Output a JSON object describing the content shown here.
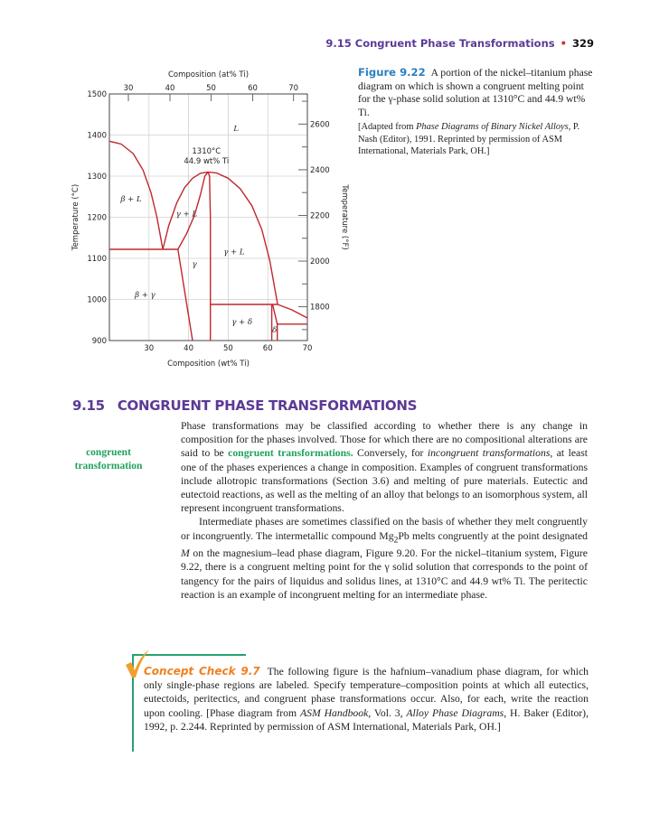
{
  "running_head": {
    "section": "9.15 Congruent Phase Transformations",
    "bullet": "•",
    "page": "329"
  },
  "chart_data": {
    "type": "line",
    "title": "",
    "xlabel_bottom": "Composition (wt% Ti)",
    "xlabel_top": "Composition (at% Ti)",
    "ylabel_left": "Temperature (°C)",
    "ylabel_right": "Temperature (°F)",
    "xlim": [
      20,
      70
    ],
    "ylim": [
      900,
      1500
    ],
    "x_ticks": [
      "30",
      "40",
      "50",
      "60",
      "70"
    ],
    "x_tick_values": [
      30,
      40,
      50,
      60,
      70
    ],
    "top_ticks": [
      "30",
      "40",
      "50",
      "60",
      "70"
    ],
    "top_tick_values_wt": [
      24.8,
      35.3,
      45.7,
      56.2,
      66.5
    ],
    "y_ticks": [
      "900",
      "1000",
      "1100",
      "1200",
      "1300",
      "1400",
      "1500"
    ],
    "y_tick_values": [
      900,
      1000,
      1100,
      1200,
      1300,
      1400,
      1500
    ],
    "right_ticks": [
      "1800",
      "2000",
      "2200",
      "2400",
      "2600"
    ],
    "right_tick_values_F": [
      1800,
      2000,
      2200,
      2400,
      2600
    ],
    "grid": true,
    "line_color": "#c0282d",
    "lines": [
      {
        "points": [
          [
            20,
            1385
          ],
          [
            23,
            1378
          ],
          [
            26,
            1355
          ],
          [
            28.5,
            1315
          ],
          [
            30.5,
            1260
          ],
          [
            32,
            1200
          ],
          [
            33.5,
            1122
          ]
        ]
      },
      {
        "points": [
          [
            33.5,
            1122
          ],
          [
            35,
            1180
          ],
          [
            37,
            1235
          ],
          [
            39,
            1272
          ],
          [
            41,
            1295
          ],
          [
            43,
            1307
          ],
          [
            44.9,
            1310
          ]
        ]
      },
      {
        "points": [
          [
            37.3,
            1122
          ],
          [
            39.5,
            1160
          ],
          [
            41.5,
            1205
          ],
          [
            43,
            1255
          ],
          [
            44.1,
            1300
          ],
          [
            44.9,
            1310
          ]
        ]
      },
      {
        "points": [
          [
            44.9,
            1310
          ],
          [
            47,
            1308
          ],
          [
            50,
            1295
          ],
          [
            53,
            1270
          ],
          [
            56,
            1228
          ],
          [
            58.5,
            1170
          ],
          [
            60.5,
            1095
          ],
          [
            62.5,
            988
          ]
        ]
      },
      {
        "points": [
          [
            44.9,
            1310
          ],
          [
            45.3,
            1300
          ],
          [
            45.5,
            1200
          ],
          [
            45.5,
            900
          ]
        ]
      },
      {
        "points": [
          [
            20,
            1122
          ],
          [
            37.3,
            1122
          ]
        ]
      },
      {
        "points": [
          [
            37.3,
            1122
          ],
          [
            41,
            900
          ]
        ]
      },
      {
        "points": [
          [
            45.5,
            988
          ],
          [
            62.5,
            988
          ]
        ]
      },
      {
        "points": [
          [
            61,
            988
          ],
          [
            61,
            900
          ]
        ]
      },
      {
        "points": [
          [
            61.2,
            988
          ],
          [
            62.4,
            940
          ],
          [
            62.4,
            900
          ]
        ]
      },
      {
        "points": [
          [
            62.4,
            940
          ],
          [
            70,
            940
          ]
        ]
      },
      {
        "points": [
          [
            62.5,
            988
          ],
          [
            66,
            975
          ],
          [
            70,
            955
          ]
        ]
      }
    ],
    "annotations": [
      {
        "text": "L",
        "x": 52,
        "y": 1410,
        "italic": true
      },
      {
        "text": "1310°C",
        "x": 44.5,
        "y": 1355
      },
      {
        "text": "44.9 wt% Ti",
        "x": 44.5,
        "y": 1331
      },
      {
        "text": "β + L",
        "x": 25.5,
        "y": 1238
      },
      {
        "text": "γ + L",
        "x": 39.5,
        "y": 1202
      },
      {
        "text": "γ + L",
        "x": 51.5,
        "y": 1110
      },
      {
        "text": "γ",
        "x": 41.5,
        "y": 1080
      },
      {
        "text": "β + γ",
        "x": 29,
        "y": 1005
      },
      {
        "text": "γ + δ",
        "x": 53.5,
        "y": 940
      },
      {
        "text": "δ",
        "x": 61.7,
        "y": 920
      }
    ]
  },
  "caption": {
    "label": "Figure 9.22",
    "text": "A portion of the nickel–titanium phase diagram on which is shown a congruent melting point for the γ-phase solid solution at 1310°C and 44.9 wt% Ti.",
    "source_pre": "[Adapted from ",
    "source_title": "Phase Diagrams of Binary Nickel Alloys,",
    "source_post": " P. Nash (Editor), 1991. Reprinted by permission of ASM International, Materials Park, OH.]"
  },
  "section": {
    "number": "9.15",
    "title": "CONGRUENT PHASE TRANSFORMATIONS"
  },
  "margin_term": {
    "line1": "congruent",
    "line2": "transformation"
  },
  "para1": {
    "a": "Phase transformations may be classified according to whether there is any change in composition for the phases involved. Those for which there are no compositional alterations are said to be ",
    "key": "congruent transformations.",
    "b": " Conversely, for ",
    "i1": "incongruent transformations,",
    "c": " at least one of the phases experiences a change in composition. Examples of congruent transformations include allotropic transformations (Section 3.6) and melting of pure materials. Eutectic and eutectoid reactions, as well as the melting of an alloy that belongs to an isomorphous system, all represent incongruent transformations."
  },
  "para2": {
    "a": "Intermediate phases are sometimes classified on the basis of whether they melt congruently or incongruently. The intermetallic compound Mg",
    "sub": "2",
    "b": "Pb melts congruently at the point designated ",
    "m": "M",
    "c": " on the magnesium–lead phase diagram, Figure 9.20. For the nickel–titanium system, Figure 9.22, there is a congruent melting point for the γ solid solution that corresponds to the point of tangency for the pairs of liquidus and solidus lines, at 1310°C and 44.9 wt% Ti. The peritectic reaction is an example of incongruent melting for an intermediate phase."
  },
  "concept_check": {
    "label": "Concept Check 9.7",
    "a": "The following figure is the hafnium–vanadium phase diagram, for which only single-phase regions are labeled. Specify temperature–composition points at which all eutectics, eutectoids, peritectics, and congruent phase transformations occur. Also, for each, write the reaction upon cooling. [Phase diagram from ",
    "i1": "ASM Handbook,",
    "b": " Vol. 3, ",
    "i2": "Alloy Phase Diagrams,",
    "c": " H. Baker (Editor), 1992, p. 2.244. Reprinted by permission of ASM International, Materials Park, OH.]",
    "accent": "#f08020",
    "bar_color": "#2aa070"
  }
}
